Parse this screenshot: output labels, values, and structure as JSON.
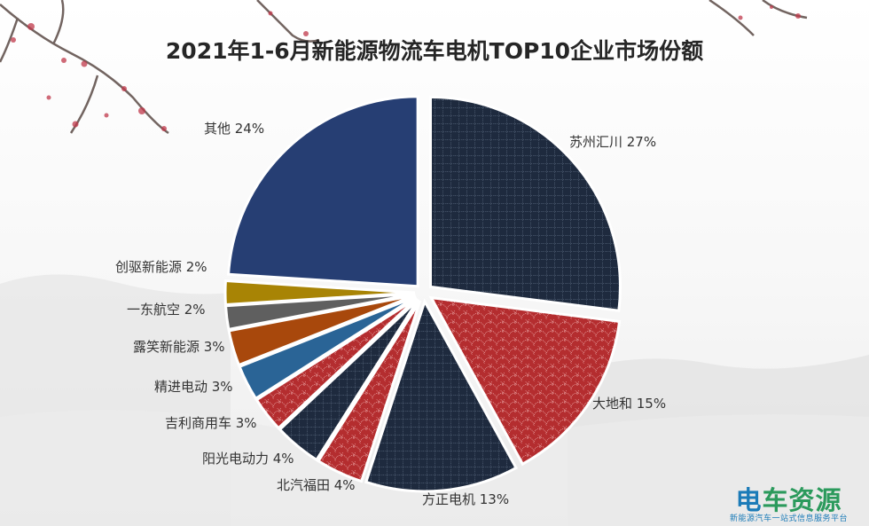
{
  "chart_data": {
    "type": "pie",
    "title": "2021年1-6月新能源物流车电机TOP10企业市场份额",
    "slices": [
      {
        "label": "苏州汇川",
        "value": 27,
        "value_label": "27%",
        "color": "#1e2a3e",
        "pattern": "grid"
      },
      {
        "label": "大地和",
        "value": 15,
        "value_label": "15%",
        "color": "#b42d2f",
        "pattern": "scales"
      },
      {
        "label": "方正电机",
        "value": 13,
        "value_label": "13%",
        "color": "#1e2a3e",
        "pattern": "grid"
      },
      {
        "label": "北汽福田",
        "value": 4,
        "value_label": "4%",
        "color": "#b42d2f",
        "pattern": "scales"
      },
      {
        "label": "阳光电动力",
        "value": 4,
        "value_label": "4%",
        "color": "#1e2a3e",
        "pattern": "grid"
      },
      {
        "label": "吉利商用车",
        "value": 3,
        "value_label": "3%",
        "color": "#b42d2f",
        "pattern": "scales"
      },
      {
        "label": "精进电动",
        "value": 3,
        "value_label": "3%",
        "color": "#2a6496",
        "pattern": "none"
      },
      {
        "label": "露笑新能源",
        "value": 3,
        "value_label": "3%",
        "color": "#a8480c",
        "pattern": "none"
      },
      {
        "label": "一东航空",
        "value": 2,
        "value_label": "2%",
        "color": "#5f5f5f",
        "pattern": "none"
      },
      {
        "label": "创驱新能源",
        "value": 2,
        "value_label": "2%",
        "color": "#a88405",
        "pattern": "none"
      },
      {
        "label": "其他",
        "value": 24,
        "value_label": "24%",
        "color": "#263e73",
        "pattern": "none"
      }
    ]
  },
  "watermark": {
    "main_a": "电",
    "main_b": "车资源",
    "sub": "新能源汽车一站式信息服务平台"
  }
}
